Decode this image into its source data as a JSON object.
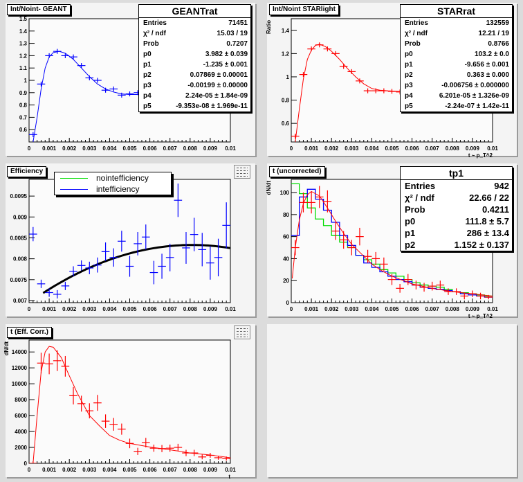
{
  "colors": {
    "canvas": "#dcdcdc",
    "pad": "#f4f4f4",
    "blue": "#0000ff",
    "red": "#ff0000",
    "green": "#00dd00",
    "black": "#000000"
  },
  "pads": [
    {
      "title": "Int/Noint- GEANT",
      "stats": {
        "name": "GEANTrat",
        "rows": [
          [
            "Entries",
            "71451"
          ],
          [
            "χ² / ndf",
            "15.03 / 19"
          ],
          [
            "Prob",
            "0.7207"
          ],
          [
            "p0",
            "3.982 ± 0.039"
          ],
          [
            "p1",
            "-1.235 ± 0.001"
          ],
          [
            "p2",
            "0.07869 ± 0.00001"
          ],
          [
            "p3",
            "-0.00199 ± 0.00000"
          ],
          [
            "p4",
            "2.24e-05 ± 1.84e-09"
          ],
          [
            "p5",
            "-9.353e-08 ± 1.969e-11"
          ]
        ]
      }
    },
    {
      "title": "Int/Noint STARlight",
      "stats": {
        "name": "STARrat",
        "rows": [
          [
            "Entries",
            "132559"
          ],
          [
            "χ² / ndf",
            "12.21 / 19"
          ],
          [
            "Prob",
            "0.8766"
          ],
          [
            "p0",
            "103.2 ± 0.0"
          ],
          [
            "p1",
            "-9.656 ± 0.001"
          ],
          [
            "p2",
            "0.363 ± 0.000"
          ],
          [
            "p3",
            "-0.006756 ± 0.000000"
          ],
          [
            "p4",
            "6.201e-05 ± 1.326e-09"
          ],
          [
            "p5",
            "-2.24e-07 ± 1.42e-11"
          ]
        ]
      }
    },
    {
      "title": "Efficiency",
      "legend": [
        {
          "label": "nointefficiency",
          "color": "#00dd00"
        },
        {
          "label": "intefficiency",
          "color": "#0000ff"
        }
      ]
    },
    {
      "title": "t (uncorrected)",
      "stats": {
        "name": "tp1",
        "rows": [
          [
            "Entries",
            "942"
          ],
          [
            "χ² / ndf",
            "22.66 / 22"
          ],
          [
            "Prob",
            "0.4211"
          ],
          [
            "p0",
            "111.8 ± 5.7"
          ],
          [
            "p1",
            "286 ± 13.4"
          ],
          [
            "p2",
            "1.152 ± 0.137"
          ]
        ]
      }
    },
    {
      "title": "t (Eff. Corr.)"
    },
    {}
  ],
  "chart_data": [
    {
      "type": "scatter",
      "title": "Int/Noint- GEANT",
      "xlabel": "",
      "ylabel": "",
      "xlim": [
        0,
        0.01
      ],
      "ylim": [
        0.5,
        1.5
      ],
      "xticks": [
        "0",
        "0.001",
        "0.002",
        "0.003",
        "0.004",
        "0.005",
        "0.006",
        "0.007",
        "0.008",
        "0.009",
        "0.01"
      ],
      "yticks": [
        "0.6",
        "0.7",
        "0.8",
        "0.9",
        "1",
        "1.1",
        "1.2",
        "1.3",
        "1.4",
        "1.5"
      ],
      "marker_color": "#0000ff",
      "ex": 0.0002,
      "points": [
        [
          0.0002,
          0.56
        ],
        [
          0.0006,
          0.97
        ],
        [
          0.001,
          1.2
        ],
        [
          0.0014,
          1.235
        ],
        [
          0.0018,
          1.2
        ],
        [
          0.0022,
          1.19
        ],
        [
          0.0026,
          1.12
        ],
        [
          0.003,
          1.02
        ],
        [
          0.0034,
          1.0
        ],
        [
          0.0038,
          0.92
        ],
        [
          0.0042,
          0.93
        ],
        [
          0.0046,
          0.88
        ],
        [
          0.005,
          0.89
        ],
        [
          0.0054,
          0.9
        ]
      ],
      "curve": [
        [
          0.0002,
          0.5
        ],
        [
          0.0004,
          0.7
        ],
        [
          0.0006,
          0.93
        ],
        [
          0.0008,
          1.1
        ],
        [
          0.001,
          1.19
        ],
        [
          0.0012,
          1.225
        ],
        [
          0.0015,
          1.235
        ],
        [
          0.0018,
          1.22
        ],
        [
          0.0022,
          1.17
        ],
        [
          0.0026,
          1.1
        ],
        [
          0.003,
          1.03
        ],
        [
          0.0034,
          0.97
        ],
        [
          0.0038,
          0.93
        ],
        [
          0.0042,
          0.905
        ],
        [
          0.0046,
          0.89
        ],
        [
          0.005,
          0.885
        ],
        [
          0.0054,
          0.885
        ],
        [
          0.0058,
          0.89
        ]
      ]
    },
    {
      "type": "scatter",
      "title": "Int/Noint STARlight",
      "xlabel": "t ~ p_T^2",
      "ylabel": "Ratio",
      "xlim": [
        0,
        0.01
      ],
      "ylim": [
        0.44,
        1.5
      ],
      "xticks": [
        "0",
        "0.001",
        "0.002",
        "0.003",
        "0.004",
        "0.005",
        "0.006",
        "0.007",
        "0.008",
        "0.009",
        "0.01"
      ],
      "yticks": [
        "0.6",
        "0.8",
        "1",
        "1.2",
        "1.4"
      ],
      "marker_color": "#ff0000",
      "ex": 0.0002,
      "points": [
        [
          0.0002,
          0.49
        ],
        [
          0.0006,
          1.02
        ],
        [
          0.001,
          1.24
        ],
        [
          0.0014,
          1.275
        ],
        [
          0.0018,
          1.24
        ],
        [
          0.0022,
          1.2
        ],
        [
          0.0026,
          1.09
        ],
        [
          0.003,
          1.045
        ],
        [
          0.0034,
          0.965
        ],
        [
          0.0038,
          0.88
        ],
        [
          0.0042,
          0.88
        ],
        [
          0.0046,
          0.88
        ],
        [
          0.005,
          0.875
        ],
        [
          0.0054,
          0.87
        ]
      ],
      "curve": [
        [
          0.0002,
          0.44
        ],
        [
          0.0004,
          0.72
        ],
        [
          0.0006,
          0.98
        ],
        [
          0.0008,
          1.15
        ],
        [
          0.001,
          1.23
        ],
        [
          0.0012,
          1.27
        ],
        [
          0.0014,
          1.28
        ],
        [
          0.0017,
          1.26
        ],
        [
          0.002,
          1.22
        ],
        [
          0.0024,
          1.15
        ],
        [
          0.0028,
          1.07
        ],
        [
          0.0032,
          1.0
        ],
        [
          0.0036,
          0.94
        ],
        [
          0.004,
          0.9
        ],
        [
          0.0044,
          0.885
        ],
        [
          0.0048,
          0.88
        ],
        [
          0.0054,
          0.875
        ],
        [
          0.0058,
          0.872
        ]
      ]
    },
    {
      "type": "scatter",
      "title": "Efficiency",
      "xlabel": "",
      "ylabel": "",
      "xlim": [
        0,
        0.01
      ],
      "ylim": [
        0.00695,
        0.0099
      ],
      "xticks": [
        "0",
        "0.001",
        "0.002",
        "0.003",
        "0.004",
        "0.005",
        "0.006",
        "0.007",
        "0.008",
        "0.009",
        "0.01"
      ],
      "yticks": [
        "0.007",
        "0.0075",
        "0.008",
        "0.0085",
        "0.009",
        "0.0095"
      ],
      "marker_color": "#0000ff",
      "ex": 0.0002,
      "points": [
        [
          0.0002,
          0.00859,
          0.00017
        ],
        [
          0.0006,
          0.0074,
          0.0001
        ],
        [
          0.001,
          0.00719,
          0.0001
        ],
        [
          0.0014,
          0.00715,
          0.0001
        ],
        [
          0.0018,
          0.00735,
          0.0001
        ],
        [
          0.0022,
          0.0077,
          0.00012
        ],
        [
          0.0026,
          0.00784,
          0.00012
        ],
        [
          0.003,
          0.00778,
          0.00015
        ],
        [
          0.0034,
          0.00785,
          0.00018
        ],
        [
          0.0038,
          0.00817,
          0.00022
        ],
        [
          0.0042,
          0.00803,
          0.00022
        ],
        [
          0.0046,
          0.00842,
          0.00025
        ],
        [
          0.005,
          0.00782,
          0.00025
        ],
        [
          0.0054,
          0.00836,
          0.00028
        ],
        [
          0.0058,
          0.00852,
          0.0003
        ],
        [
          0.0062,
          0.00767,
          0.00028
        ],
        [
          0.0066,
          0.00782,
          0.0003
        ],
        [
          0.007,
          0.00803,
          0.00033
        ],
        [
          0.0074,
          0.0094,
          0.0004
        ],
        [
          0.0078,
          0.00826,
          0.00038
        ],
        [
          0.0082,
          0.00858,
          0.0004
        ],
        [
          0.0086,
          0.00822,
          0.0004
        ],
        [
          0.009,
          0.0079,
          0.0004
        ],
        [
          0.0094,
          0.00803,
          0.00045
        ],
        [
          0.0098,
          0.0088,
          0.00055
        ]
      ],
      "fit": {
        "type": "quadratic",
        "peak_x": 0.0081,
        "peak_y": 0.00833,
        "a": 21.0,
        "from": 0.0007,
        "to": 0.01,
        "color": "#000000"
      }
    },
    {
      "type": "histogram",
      "title": "t (uncorrected)",
      "xlabel": "t ~ p_T^2",
      "ylabel": "dN/dt",
      "xlim": [
        0,
        0.01
      ],
      "ylim": [
        0,
        112
      ],
      "xticks": [
        "0",
        "0.001",
        "0.002",
        "0.003",
        "0.004",
        "0.005",
        "0.006",
        "0.007",
        "0.008",
        "0.009",
        "0.01"
      ],
      "yticks": [
        "0",
        "20",
        "40",
        "60",
        "80",
        "100"
      ],
      "marker_color": "#ff0000",
      "ex": 0.0002,
      "points": [
        [
          0.0002,
          50,
          7
        ],
        [
          0.0006,
          91,
          9
        ],
        [
          0.001,
          91,
          10
        ],
        [
          0.0014,
          96,
          10
        ],
        [
          0.0018,
          92,
          10
        ],
        [
          0.0022,
          65,
          8
        ],
        [
          0.0026,
          57,
          8
        ],
        [
          0.003,
          50,
          7
        ],
        [
          0.0034,
          60,
          8
        ],
        [
          0.0038,
          42,
          6
        ],
        [
          0.0042,
          40,
          6
        ],
        [
          0.0046,
          35,
          6
        ],
        [
          0.005,
          21,
          5
        ],
        [
          0.0054,
          13,
          4
        ],
        [
          0.0058,
          21,
          5
        ],
        [
          0.0062,
          16,
          4
        ],
        [
          0.0066,
          14,
          4
        ],
        [
          0.007,
          15,
          4
        ],
        [
          0.0074,
          16,
          4
        ],
        [
          0.0078,
          10,
          3
        ],
        [
          0.0082,
          10,
          3
        ],
        [
          0.0086,
          6,
          3
        ],
        [
          0.009,
          8,
          3
        ],
        [
          0.0094,
          6,
          3
        ],
        [
          0.0098,
          5,
          2
        ]
      ],
      "bin_width": 0.0004,
      "histograms": [
        {
          "color": "#00dd00",
          "values": [
            108,
            99,
            86,
            76,
            70,
            61,
            55,
            50,
            43,
            39,
            35,
            30,
            27,
            24,
            21,
            18,
            16,
            15,
            14,
            12,
            10,
            9,
            8,
            7,
            6
          ]
        },
        {
          "color": "#0000ff",
          "values": [
            61,
            96,
            103,
            94,
            84,
            73,
            61,
            52,
            43,
            36,
            32,
            28,
            24,
            21,
            19,
            16,
            14,
            13,
            12,
            11,
            10,
            8,
            7,
            6,
            5
          ]
        }
      ],
      "curve": [
        [
          5e-05,
          22
        ],
        [
          0.0002,
          50
        ],
        [
          0.0004,
          75
        ],
        [
          0.0006,
          90
        ],
        [
          0.0008,
          98
        ],
        [
          0.001,
          101
        ],
        [
          0.0014,
          97
        ],
        [
          0.0018,
          86
        ],
        [
          0.0022,
          74
        ],
        [
          0.0026,
          63
        ],
        [
          0.003,
          53
        ],
        [
          0.0035,
          44
        ],
        [
          0.004,
          35
        ],
        [
          0.0045,
          29
        ],
        [
          0.005,
          24
        ],
        [
          0.006,
          17
        ],
        [
          0.007,
          13
        ],
        [
          0.008,
          10
        ],
        [
          0.009,
          8
        ],
        [
          0.01,
          6
        ]
      ]
    },
    {
      "type": "scatter",
      "title": "t (Eff. Corr.)",
      "xlabel": "t",
      "ylabel": "dN/dt",
      "xlim": [
        0,
        0.01
      ],
      "ylim": [
        0,
        15500
      ],
      "xticks": [
        "0",
        "0.001",
        "0.002",
        "0.003",
        "0.004",
        "0.005",
        "0.006",
        "0.007",
        "0.008",
        "0.009",
        "0.01"
      ],
      "yticks": [
        "0",
        "2000",
        "4000",
        "6000",
        "8000",
        "10000",
        "12000",
        "14000"
      ],
      "marker_color": "#ff0000",
      "ex": 0.0002,
      "points": [
        [
          0.0002,
          0,
          0
        ],
        [
          0.0006,
          12600,
          1300
        ],
        [
          0.001,
          12500,
          1300
        ],
        [
          0.0014,
          12900,
          1300
        ],
        [
          0.0018,
          12200,
          1300
        ],
        [
          0.0022,
          8500,
          1100
        ],
        [
          0.0026,
          7500,
          1000
        ],
        [
          0.003,
          6600,
          950
        ],
        [
          0.0034,
          7600,
          1000
        ],
        [
          0.0038,
          5300,
          850
        ],
        [
          0.0042,
          4900,
          800
        ],
        [
          0.0046,
          4300,
          700
        ],
        [
          0.005,
          2500,
          600
        ],
        [
          0.0054,
          1500,
          450
        ],
        [
          0.0058,
          2600,
          600
        ],
        [
          0.0062,
          1900,
          450
        ],
        [
          0.0066,
          1850,
          450
        ],
        [
          0.007,
          1900,
          450
        ],
        [
          0.0074,
          2000,
          450
        ],
        [
          0.0078,
          1300,
          400
        ],
        [
          0.0082,
          1300,
          400
        ],
        [
          0.0086,
          800,
          300
        ],
        [
          0.009,
          1000,
          300
        ],
        [
          0.0094,
          700,
          250
        ],
        [
          0.0098,
          600,
          250
        ]
      ],
      "curve": [
        [
          0.0002,
          0
        ],
        [
          0.0004,
          6000
        ],
        [
          0.0006,
          11500
        ],
        [
          0.0008,
          14000
        ],
        [
          0.001,
          14700
        ],
        [
          0.0012,
          14600
        ],
        [
          0.0016,
          13300
        ],
        [
          0.002,
          11000
        ],
        [
          0.0024,
          8800
        ],
        [
          0.003,
          6000
        ],
        [
          0.0035,
          4700
        ],
        [
          0.004,
          3500
        ],
        [
          0.0045,
          2900
        ],
        [
          0.005,
          2500
        ],
        [
          0.006,
          2050
        ],
        [
          0.007,
          1700
        ],
        [
          0.008,
          1300
        ],
        [
          0.009,
          1050
        ],
        [
          0.01,
          700
        ]
      ]
    }
  ]
}
